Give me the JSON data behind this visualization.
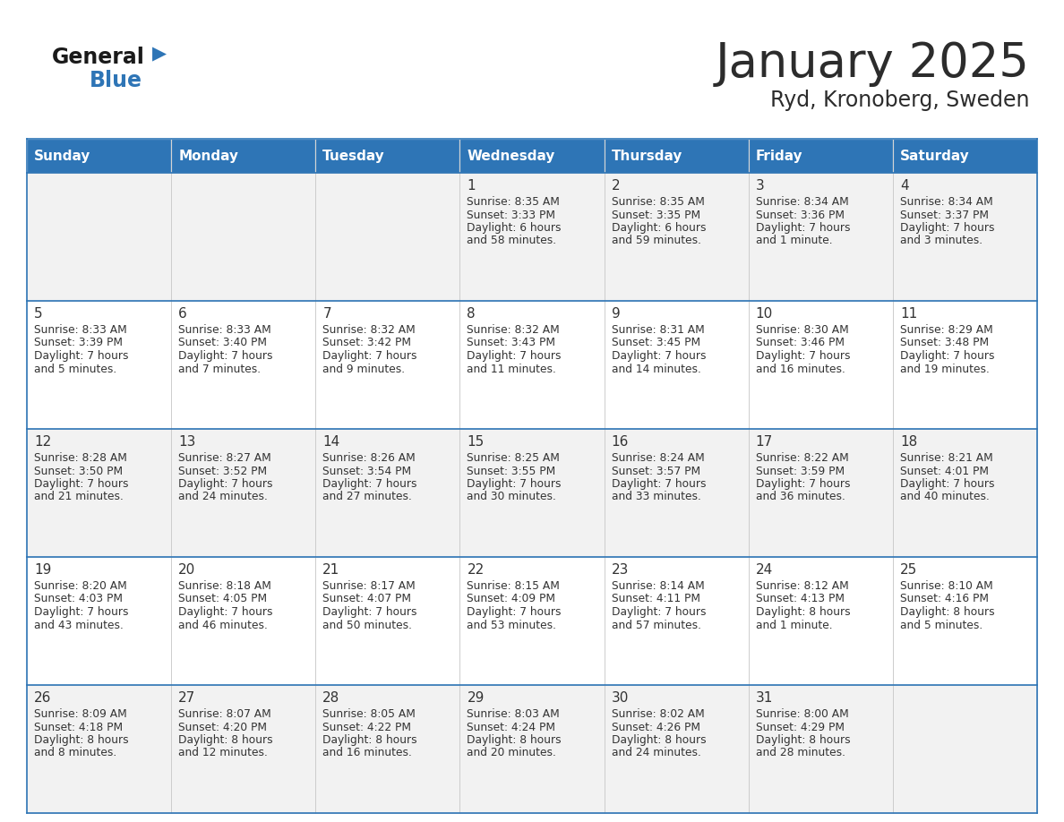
{
  "title": "January 2025",
  "subtitle": "Ryd, Kronoberg, Sweden",
  "days_of_week": [
    "Sunday",
    "Monday",
    "Tuesday",
    "Wednesday",
    "Thursday",
    "Friday",
    "Saturday"
  ],
  "header_bg": "#2E75B6",
  "header_text": "#FFFFFF",
  "row_bg_odd": "#F2F2F2",
  "row_bg_even": "#FFFFFF",
  "cell_border_color": "#2E75B6",
  "inner_border_color": "#CCCCCC",
  "title_color": "#2C2C2C",
  "text_color": "#333333",
  "logo_black": "#1A1A1A",
  "logo_blue": "#2E75B6",
  "calendar_data": [
    [
      {
        "day": "",
        "sunrise": "",
        "sunset": "",
        "daylight": ""
      },
      {
        "day": "",
        "sunrise": "",
        "sunset": "",
        "daylight": ""
      },
      {
        "day": "",
        "sunrise": "",
        "sunset": "",
        "daylight": ""
      },
      {
        "day": "1",
        "sunrise": "8:35 AM",
        "sunset": "3:33 PM",
        "daylight": "6 hours and 58 minutes."
      },
      {
        "day": "2",
        "sunrise": "8:35 AM",
        "sunset": "3:35 PM",
        "daylight": "6 hours and 59 minutes."
      },
      {
        "day": "3",
        "sunrise": "8:34 AM",
        "sunset": "3:36 PM",
        "daylight": "7 hours and 1 minute."
      },
      {
        "day": "4",
        "sunrise": "8:34 AM",
        "sunset": "3:37 PM",
        "daylight": "7 hours and 3 minutes."
      }
    ],
    [
      {
        "day": "5",
        "sunrise": "8:33 AM",
        "sunset": "3:39 PM",
        "daylight": "7 hours and 5 minutes."
      },
      {
        "day": "6",
        "sunrise": "8:33 AM",
        "sunset": "3:40 PM",
        "daylight": "7 hours and 7 minutes."
      },
      {
        "day": "7",
        "sunrise": "8:32 AM",
        "sunset": "3:42 PM",
        "daylight": "7 hours and 9 minutes."
      },
      {
        "day": "8",
        "sunrise": "8:32 AM",
        "sunset": "3:43 PM",
        "daylight": "7 hours and 11 minutes."
      },
      {
        "day": "9",
        "sunrise": "8:31 AM",
        "sunset": "3:45 PM",
        "daylight": "7 hours and 14 minutes."
      },
      {
        "day": "10",
        "sunrise": "8:30 AM",
        "sunset": "3:46 PM",
        "daylight": "7 hours and 16 minutes."
      },
      {
        "day": "11",
        "sunrise": "8:29 AM",
        "sunset": "3:48 PM",
        "daylight": "7 hours and 19 minutes."
      }
    ],
    [
      {
        "day": "12",
        "sunrise": "8:28 AM",
        "sunset": "3:50 PM",
        "daylight": "7 hours and 21 minutes."
      },
      {
        "day": "13",
        "sunrise": "8:27 AM",
        "sunset": "3:52 PM",
        "daylight": "7 hours and 24 minutes."
      },
      {
        "day": "14",
        "sunrise": "8:26 AM",
        "sunset": "3:54 PM",
        "daylight": "7 hours and 27 minutes."
      },
      {
        "day": "15",
        "sunrise": "8:25 AM",
        "sunset": "3:55 PM",
        "daylight": "7 hours and 30 minutes."
      },
      {
        "day": "16",
        "sunrise": "8:24 AM",
        "sunset": "3:57 PM",
        "daylight": "7 hours and 33 minutes."
      },
      {
        "day": "17",
        "sunrise": "8:22 AM",
        "sunset": "3:59 PM",
        "daylight": "7 hours and 36 minutes."
      },
      {
        "day": "18",
        "sunrise": "8:21 AM",
        "sunset": "4:01 PM",
        "daylight": "7 hours and 40 minutes."
      }
    ],
    [
      {
        "day": "19",
        "sunrise": "8:20 AM",
        "sunset": "4:03 PM",
        "daylight": "7 hours and 43 minutes."
      },
      {
        "day": "20",
        "sunrise": "8:18 AM",
        "sunset": "4:05 PM",
        "daylight": "7 hours and 46 minutes."
      },
      {
        "day": "21",
        "sunrise": "8:17 AM",
        "sunset": "4:07 PM",
        "daylight": "7 hours and 50 minutes."
      },
      {
        "day": "22",
        "sunrise": "8:15 AM",
        "sunset": "4:09 PM",
        "daylight": "7 hours and 53 minutes."
      },
      {
        "day": "23",
        "sunrise": "8:14 AM",
        "sunset": "4:11 PM",
        "daylight": "7 hours and 57 minutes."
      },
      {
        "day": "24",
        "sunrise": "8:12 AM",
        "sunset": "4:13 PM",
        "daylight": "8 hours and 1 minute."
      },
      {
        "day": "25",
        "sunrise": "8:10 AM",
        "sunset": "4:16 PM",
        "daylight": "8 hours and 5 minutes."
      }
    ],
    [
      {
        "day": "26",
        "sunrise": "8:09 AM",
        "sunset": "4:18 PM",
        "daylight": "8 hours and 8 minutes."
      },
      {
        "day": "27",
        "sunrise": "8:07 AM",
        "sunset": "4:20 PM",
        "daylight": "8 hours and 12 minutes."
      },
      {
        "day": "28",
        "sunrise": "8:05 AM",
        "sunset": "4:22 PM",
        "daylight": "8 hours and 16 minutes."
      },
      {
        "day": "29",
        "sunrise": "8:03 AM",
        "sunset": "4:24 PM",
        "daylight": "8 hours and 20 minutes."
      },
      {
        "day": "30",
        "sunrise": "8:02 AM",
        "sunset": "4:26 PM",
        "daylight": "8 hours and 24 minutes."
      },
      {
        "day": "31",
        "sunrise": "8:00 AM",
        "sunset": "4:29 PM",
        "daylight": "8 hours and 28 minutes."
      },
      {
        "day": "",
        "sunrise": "",
        "sunset": "",
        "daylight": ""
      }
    ]
  ]
}
